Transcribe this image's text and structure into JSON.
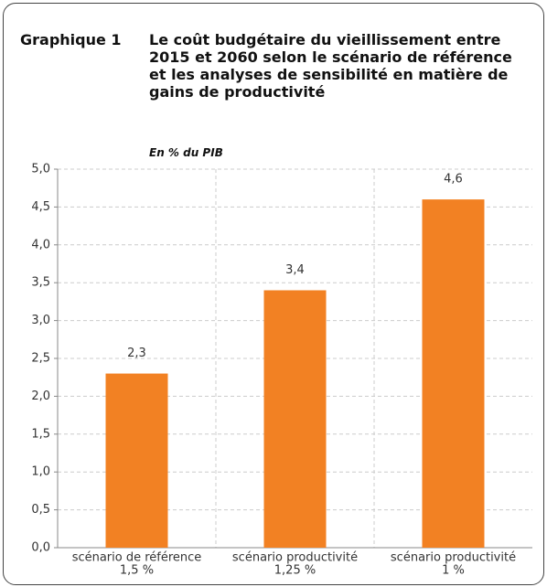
{
  "label": "Graphique 1",
  "chart_data": {
    "type": "bar",
    "title": "Le coût budgétaire du vieillissement entre 2015 et 2060 selon le scénario de référence et les analyses de sensibilité en matière de gains de productivité",
    "subtitle": "En % du PIB",
    "categories": [
      [
        "scénario de référence",
        "1,5 %"
      ],
      [
        "scénario productivité",
        "1,25 %"
      ],
      [
        "scénario productivité",
        "1 %"
      ]
    ],
    "values": [
      2.3,
      3.4,
      4.6
    ],
    "value_labels": [
      "2,3",
      "3,4",
      "4,6"
    ],
    "color": "#f28123",
    "ylim": [
      0,
      5
    ],
    "yticks": [
      {
        "value": 0,
        "label": "0,0"
      },
      {
        "value": 0.5,
        "label": "0,5"
      },
      {
        "value": 1,
        "label": "1,0"
      },
      {
        "value": 1.5,
        "label": "1,5"
      },
      {
        "value": 2,
        "label": "2,0"
      },
      {
        "value": 2.5,
        "label": "2,5"
      },
      {
        "value": 3,
        "label": "3,0"
      },
      {
        "value": 3.5,
        "label": "3,5"
      },
      {
        "value": 4,
        "label": "4,0"
      },
      {
        "value": 4.5,
        "label": "4,5"
      },
      {
        "value": 5,
        "label": "5,0"
      }
    ],
    "grid": true
  }
}
